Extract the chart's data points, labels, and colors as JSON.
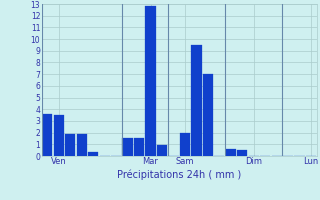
{
  "title": "Précipitations 24h ( mm )",
  "bar_values": [
    3.6,
    3.5,
    1.9,
    1.9,
    0.3,
    0.0,
    0.0,
    1.5,
    1.5,
    12.8,
    0.9,
    0.0,
    2.0,
    9.5,
    7.0,
    0.0,
    0.6,
    0.5,
    0.0,
    0.0,
    0.0,
    0.0,
    0.0,
    0.0
  ],
  "day_labels": [
    "Ven",
    "Mar",
    "Sam",
    "Dim",
    "Lun"
  ],
  "day_tick_positions": [
    1,
    9,
    12,
    18,
    23
  ],
  "day_sep_positions": [
    0,
    7,
    11,
    16,
    21
  ],
  "bar_color": "#1040cc",
  "background_color": "#cff0f0",
  "grid_color": "#aacccc",
  "text_color": "#3333aa",
  "ylim": [
    0,
    13
  ],
  "yticks": [
    0,
    1,
    2,
    3,
    4,
    5,
    6,
    7,
    8,
    9,
    10,
    11,
    12,
    13
  ],
  "n_bars": 24
}
